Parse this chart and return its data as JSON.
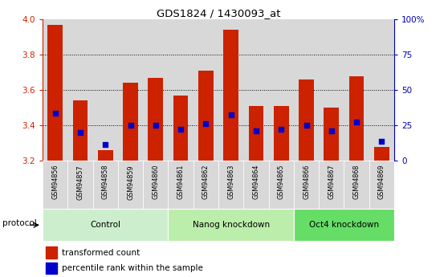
{
  "title": "GDS1824 / 1430093_at",
  "samples": [
    "GSM94856",
    "GSM94857",
    "GSM94858",
    "GSM94859",
    "GSM94860",
    "GSM94861",
    "GSM94862",
    "GSM94863",
    "GSM94864",
    "GSM94865",
    "GSM94866",
    "GSM94867",
    "GSM94868",
    "GSM94869"
  ],
  "bar_values": [
    3.97,
    3.54,
    3.26,
    3.64,
    3.67,
    3.57,
    3.71,
    3.94,
    3.51,
    3.51,
    3.66,
    3.5,
    3.68,
    3.28
  ],
  "blue_values": [
    3.47,
    3.36,
    3.29,
    3.4,
    3.4,
    3.38,
    3.41,
    3.46,
    3.37,
    3.38,
    3.4,
    3.37,
    3.42,
    3.31
  ],
  "bar_bottom": 3.2,
  "ylim_min": 3.2,
  "ylim_max": 4.0,
  "yticks": [
    3.2,
    3.4,
    3.6,
    3.8,
    4.0
  ],
  "grid_lines": [
    3.4,
    3.6,
    3.8
  ],
  "right_ytick_vals": [
    0,
    25,
    50,
    75,
    100
  ],
  "right_ytick_labels": [
    "0",
    "25",
    "50",
    "75",
    "100%"
  ],
  "groups": [
    {
      "label": "Control",
      "start": 0,
      "end": 5,
      "color": "#cceecc"
    },
    {
      "label": "Nanog knockdown",
      "start": 5,
      "end": 10,
      "color": "#bbeeaa"
    },
    {
      "label": "Oct4 knockdown",
      "start": 10,
      "end": 14,
      "color": "#66dd66"
    }
  ],
  "bar_color": "#cc2200",
  "blue_color": "#0000cc",
  "legend_red": "transformed count",
  "legend_blue": "percentile rank within the sample",
  "protocol_label": "protocol",
  "ylabel_left_color": "#cc2200",
  "ylabel_right_color": "#0000aa",
  "xtick_bg_color": "#d8d8d8"
}
